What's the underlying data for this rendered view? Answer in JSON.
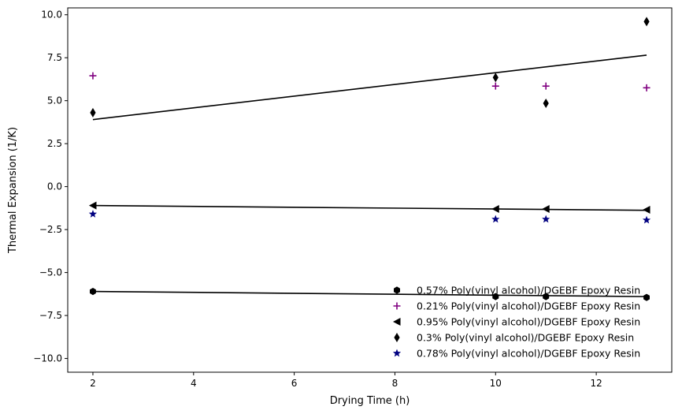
{
  "chart_data": {
    "type": "scatter",
    "title": "",
    "xlabel": "Drying Time (h)",
    "ylabel": "Thermal Expansion (1/K)",
    "xlim": [
      1.5,
      13.5
    ],
    "ylim": [
      -10.8,
      10.4
    ],
    "xticks": [
      2,
      4,
      6,
      8,
      10,
      12
    ],
    "yticks": [
      -10.0,
      -7.5,
      -5.0,
      -2.5,
      0.0,
      2.5,
      5.0,
      7.5,
      10.0
    ],
    "grid": false,
    "legend_position": "bottom-right",
    "series": [
      {
        "name": "0.57% Poly(vinyl alcohol)/DGEBF Epoxy Resin",
        "marker": "hexagon",
        "color": "#000000",
        "x": [
          2,
          10,
          11,
          13
        ],
        "y": [
          -6.1,
          -6.4,
          -6.4,
          -6.45
        ],
        "trend": [
          [
            2,
            -6.1
          ],
          [
            13,
            -6.4
          ]
        ]
      },
      {
        "name": "0.21% Poly(vinyl alcohol)/DGEBF Epoxy Resin",
        "marker": "plus",
        "color": "#800080",
        "x": [
          2,
          10,
          11,
          13
        ],
        "y": [
          6.45,
          5.85,
          5.85,
          5.75
        ],
        "trend": null
      },
      {
        "name": "0.95% Poly(vinyl alcohol)/DGEBF Epoxy Resin",
        "marker": "triangle-left",
        "color": "#000000",
        "x": [
          2,
          10,
          11,
          13
        ],
        "y": [
          -1.1,
          -1.3,
          -1.3,
          -1.35
        ],
        "trend": [
          [
            2,
            -1.1
          ],
          [
            13,
            -1.38
          ]
        ]
      },
      {
        "name": "0.3% Poly(vinyl alcohol)/DGEBF Epoxy Resin",
        "marker": "thin-diamond",
        "color": "#000000",
        "x": [
          2,
          10,
          11,
          13
        ],
        "y": [
          4.3,
          6.35,
          4.85,
          9.6
        ],
        "trend": [
          [
            2,
            3.9
          ],
          [
            13,
            7.65
          ]
        ]
      },
      {
        "name": "0.78% Poly(vinyl alcohol)/DGEBF Epoxy Resin",
        "marker": "star",
        "color": "#000080",
        "x": [
          2,
          10,
          11,
          13
        ],
        "y": [
          -1.6,
          -1.9,
          -1.9,
          -1.95
        ],
        "trend": null
      }
    ]
  }
}
